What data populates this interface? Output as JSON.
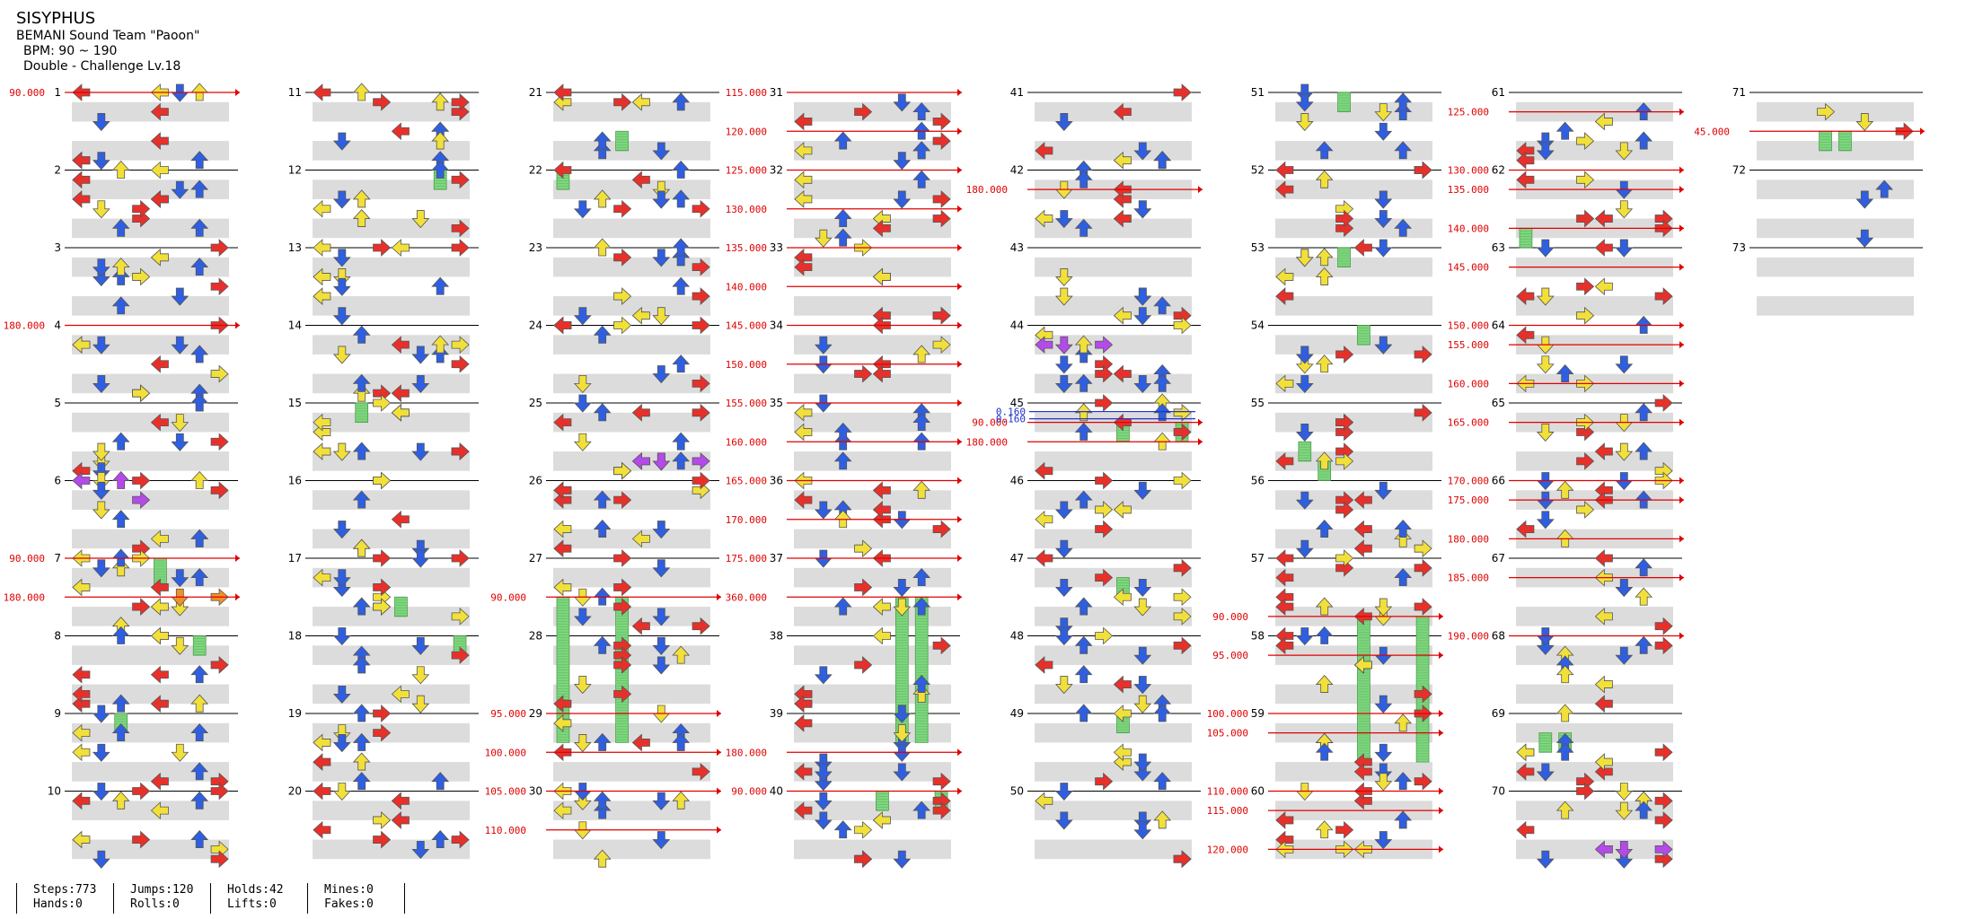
{
  "header": {
    "title": "SISYPHUS",
    "artist": "BEMANI Sound Team \"Paoon\"",
    "bpm": "BPM: 90 ~ 190",
    "difficulty": "Double - Challenge Lv.18"
  },
  "chart_data": {
    "type": "stepchart",
    "columns": 8,
    "measures_per_column": 10,
    "total_measures": 73,
    "lanes": 8,
    "colors": {
      "red": "#e8302a",
      "blue": "#2f5fe0",
      "yellow": "#f2e03a",
      "purple": "#b44ae8",
      "orange": "#f0902a",
      "green_hold": "#7ed67e",
      "bpm_line": "#e00000",
      "stop_line": "#2233cc",
      "band": "#dcdcdc"
    },
    "bpm_markers": [
      {
        "measure": 1,
        "beat": 0,
        "label": "90.000"
      },
      {
        "measure": 4,
        "beat": 0,
        "label": "180.000"
      },
      {
        "measure": 7,
        "beat": 0,
        "label": "90.000"
      },
      {
        "measure": 7,
        "beat": 2,
        "label": "180.000"
      },
      {
        "measure": 27,
        "beat": 2,
        "label": "90.000"
      },
      {
        "measure": 29,
        "beat": 0,
        "label": "95.000"
      },
      {
        "measure": 29,
        "beat": 2,
        "label": "100.000"
      },
      {
        "measure": 30,
        "beat": 0,
        "label": "105.000"
      },
      {
        "measure": 30,
        "beat": 2,
        "label": "110.000"
      },
      {
        "measure": 31,
        "beat": 0,
        "label": "115.000"
      },
      {
        "measure": 31,
        "beat": 2,
        "label": "120.000"
      },
      {
        "measure": 32,
        "beat": 0,
        "label": "125.000"
      },
      {
        "measure": 32,
        "beat": 2,
        "label": "130.000"
      },
      {
        "measure": 33,
        "beat": 0,
        "label": "135.000"
      },
      {
        "measure": 33,
        "beat": 2,
        "label": "140.000"
      },
      {
        "measure": 34,
        "beat": 0,
        "label": "145.000"
      },
      {
        "measure": 34,
        "beat": 2,
        "label": "150.000"
      },
      {
        "measure": 35,
        "beat": 0,
        "label": "155.000"
      },
      {
        "measure": 35,
        "beat": 2,
        "label": "160.000"
      },
      {
        "measure": 36,
        "beat": 0,
        "label": "165.000"
      },
      {
        "measure": 36,
        "beat": 2,
        "label": "170.000"
      },
      {
        "measure": 37,
        "beat": 0,
        "label": "175.000"
      },
      {
        "measure": 37,
        "beat": 2,
        "label": "360.000"
      },
      {
        "measure": 39,
        "beat": 2,
        "label": "180.000"
      },
      {
        "measure": 40,
        "beat": 0,
        "label": "90.000"
      },
      {
        "measure": 42,
        "beat": 1,
        "label": "180.000"
      },
      {
        "measure": 45,
        "beat": 1,
        "label": "90.000"
      },
      {
        "measure": 45,
        "beat": 2,
        "label": "180.000"
      },
      {
        "measure": 57,
        "beat": 3,
        "label": "90.000"
      },
      {
        "measure": 58,
        "beat": 1,
        "label": "95.000"
      },
      {
        "measure": 59,
        "beat": 0,
        "label": "100.000"
      },
      {
        "measure": 59,
        "beat": 1,
        "label": "105.000"
      },
      {
        "measure": 60,
        "beat": 0,
        "label": "110.000"
      },
      {
        "measure": 60,
        "beat": 1,
        "label": "115.000"
      },
      {
        "measure": 60,
        "beat": 3,
        "label": "120.000"
      },
      {
        "measure": 61,
        "beat": 1,
        "label": "125.000"
      },
      {
        "measure": 62,
        "beat": 0,
        "label": "130.000"
      },
      {
        "measure": 62,
        "beat": 1,
        "label": "135.000"
      },
      {
        "measure": 62,
        "beat": 3,
        "label": "140.000"
      },
      {
        "measure": 63,
        "beat": 1,
        "label": "145.000"
      },
      {
        "measure": 64,
        "beat": 0,
        "label": "150.000"
      },
      {
        "measure": 64,
        "beat": 1,
        "label": "155.000"
      },
      {
        "measure": 64,
        "beat": 3,
        "label": "160.000"
      },
      {
        "measure": 65,
        "beat": 1,
        "label": "165.000"
      },
      {
        "measure": 66,
        "beat": 0,
        "label": "170.000"
      },
      {
        "measure": 66,
        "beat": 1,
        "label": "175.000"
      },
      {
        "measure": 66,
        "beat": 3,
        "label": "180.000"
      },
      {
        "measure": 67,
        "beat": 1,
        "label": "185.000"
      },
      {
        "measure": 68,
        "beat": 0,
        "label": "190.000"
      },
      {
        "measure": 71,
        "beat": 2,
        "label": "45.000"
      }
    ],
    "stop_markers": [
      {
        "measure": 45,
        "beat": 1,
        "label": "0.160"
      },
      {
        "measure": 45,
        "beat": 1,
        "label": "0.160"
      }
    ],
    "holds": [
      {
        "measure": 7,
        "beat": 0,
        "lane": 4,
        "beats": 1.5
      },
      {
        "measure": 8,
        "beat": 0,
        "lane": 6,
        "beats": 1
      },
      {
        "measure": 9,
        "beat": 0,
        "lane": 2,
        "beats": 1
      },
      {
        "measure": 12,
        "beat": 0,
        "lane": 6,
        "beats": 1
      },
      {
        "measure": 15,
        "beat": 0,
        "lane": 2,
        "beats": 1
      },
      {
        "measure": 17,
        "beat": 2,
        "lane": 4,
        "beats": 1
      },
      {
        "measure": 18,
        "beat": 0,
        "lane": 7,
        "beats": 1
      },
      {
        "measure": 21,
        "beat": 2,
        "lane": 3,
        "beats": 1
      },
      {
        "measure": 22,
        "beat": 0,
        "lane": 0,
        "beats": 1
      },
      {
        "measure": 27,
        "beat": 2,
        "lane": 0,
        "beats": 7.5
      },
      {
        "measure": 27,
        "beat": 2,
        "lane": 3,
        "beats": 7.5
      },
      {
        "measure": 37,
        "beat": 2,
        "lane": 5,
        "beats": 7.5
      },
      {
        "measure": 37,
        "beat": 2,
        "lane": 6,
        "beats": 7.5
      },
      {
        "measure": 40,
        "beat": 0,
        "lane": 4,
        "beats": 1
      },
      {
        "measure": 40,
        "beat": 0,
        "lane": 7,
        "beats": 1
      },
      {
        "measure": 45,
        "beat": 1,
        "lane": 4,
        "beats": 1
      },
      {
        "measure": 45,
        "beat": 1,
        "lane": 7,
        "beats": 1
      },
      {
        "measure": 47,
        "beat": 1,
        "lane": 4,
        "beats": 1
      },
      {
        "measure": 49,
        "beat": 0,
        "lane": 4,
        "beats": 1
      },
      {
        "measure": 51,
        "beat": 0,
        "lane": 3,
        "beats": 1
      },
      {
        "measure": 53,
        "beat": 0,
        "lane": 3,
        "beats": 1
      },
      {
        "measure": 54,
        "beat": 0,
        "lane": 4,
        "beats": 1
      },
      {
        "measure": 55,
        "beat": 2,
        "lane": 1,
        "beats": 1
      },
      {
        "measure": 55,
        "beat": 3,
        "lane": 2,
        "beats": 1
      },
      {
        "measure": 57,
        "beat": 3,
        "lane": 4,
        "beats": 7.5
      },
      {
        "measure": 57,
        "beat": 3,
        "lane": 7,
        "beats": 7.5
      },
      {
        "measure": 62,
        "beat": 3,
        "lane": 0,
        "beats": 1
      },
      {
        "measure": 69,
        "beat": 1,
        "lane": 1,
        "beats": 1
      },
      {
        "measure": 69,
        "beat": 1,
        "lane": 2,
        "beats": 1
      },
      {
        "measure": 71,
        "beat": 2,
        "lane": 3,
        "beats": 1
      },
      {
        "measure": 71,
        "beat": 2,
        "lane": 4,
        "beats": 1
      }
    ],
    "extra_notes": [
      {
        "measure": 6,
        "beat": 0,
        "lane": 0,
        "color": "purple"
      },
      {
        "measure": 6,
        "beat": 0,
        "lane": 2,
        "color": "purple"
      },
      {
        "measure": 6,
        "beat": 1,
        "lane": 3,
        "color": "purple"
      },
      {
        "measure": 7,
        "beat": 2,
        "lane": 5,
        "color": "orange"
      },
      {
        "measure": 7,
        "beat": 2,
        "lane": 7,
        "color": "orange"
      },
      {
        "measure": 25,
        "beat": 3,
        "lane": 5,
        "color": "purple"
      },
      {
        "measure": 25,
        "beat": 3,
        "lane": 7,
        "color": "purple"
      },
      {
        "measure": 25,
        "beat": 3,
        "lane": 4,
        "color": "purple"
      },
      {
        "measure": 44,
        "beat": 1,
        "lane": 0,
        "color": "purple"
      },
      {
        "measure": 44,
        "beat": 1,
        "lane": 1,
        "color": "purple"
      },
      {
        "measure": 44,
        "beat": 1,
        "lane": 3,
        "color": "purple"
      },
      {
        "measure": 70,
        "beat": 3,
        "lane": 4,
        "color": "purple"
      },
      {
        "measure": 70,
        "beat": 3,
        "lane": 5,
        "color": "purple"
      },
      {
        "measure": 70,
        "beat": 3,
        "lane": 7,
        "color": "purple"
      }
    ],
    "density_seed": 7
  },
  "stats": {
    "steps": "Steps:773",
    "hands": "Hands:0",
    "jumps": "Jumps:120",
    "rolls": "Rolls:0",
    "holds": "Holds:42",
    "lifts": "Lifts:0",
    "mines": "Mines:0",
    "fakes": "Fakes:0"
  }
}
